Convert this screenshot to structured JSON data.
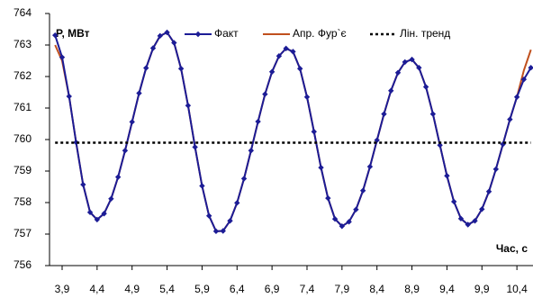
{
  "chart_data": {
    "type": "line",
    "y_label": "P, МВт",
    "x_label": "Час, с",
    "x": [
      3.8,
      3.9,
      4.0,
      4.1,
      4.2,
      4.3,
      4.4,
      4.5,
      4.6,
      4.7,
      4.8,
      4.9,
      5.0,
      5.1,
      5.2,
      5.3,
      5.4,
      5.5,
      5.6,
      5.7,
      5.8,
      5.9,
      6.0,
      6.1,
      6.2,
      6.3,
      6.4,
      6.5,
      6.6,
      6.7,
      6.8,
      6.9,
      7.0,
      7.1,
      7.2,
      7.3,
      7.4,
      7.5,
      7.6,
      7.7,
      7.8,
      7.9,
      8.0,
      8.1,
      8.2,
      8.3,
      8.4,
      8.5,
      8.6,
      8.7,
      8.8,
      8.9,
      9.0,
      9.1,
      9.2,
      9.3,
      9.4,
      9.5,
      9.6,
      9.7,
      9.8,
      9.9,
      10.0,
      10.1,
      10.2,
      10.3,
      10.4,
      10.5,
      10.6
    ],
    "series": [
      {
        "name": "Апр. Фур`є",
        "color": "#c0501e",
        "values": [
          763.0,
          762.5,
          761.37,
          759.91,
          758.57,
          757.69,
          757.46,
          757.65,
          758.12,
          758.81,
          759.65,
          760.56,
          761.47,
          762.27,
          762.9,
          763.29,
          763.4,
          763.07,
          762.25,
          761.08,
          759.76,
          758.53,
          757.58,
          757.09,
          757.1,
          757.42,
          757.99,
          758.76,
          759.65,
          760.57,
          761.44,
          762.15,
          762.65,
          762.89,
          762.79,
          762.25,
          761.35,
          760.25,
          759.11,
          758.14,
          757.48,
          757.25,
          757.39,
          757.78,
          758.38,
          759.14,
          759.98,
          760.81,
          761.55,
          762.12,
          762.46,
          762.54,
          762.28,
          761.67,
          760.81,
          759.82,
          758.85,
          758.03,
          757.49,
          757.3,
          757.42,
          757.79,
          758.35,
          759.06,
          759.85,
          760.64,
          761.35,
          762.2,
          762.85
        ]
      },
      {
        "name": "Факт",
        "color": "#1c1c96",
        "marker": "diamond",
        "values": [
          763.31,
          762.61,
          761.37,
          759.91,
          758.57,
          757.69,
          757.46,
          757.65,
          758.12,
          758.81,
          759.65,
          760.56,
          761.47,
          762.27,
          762.9,
          763.29,
          763.4,
          763.07,
          762.25,
          761.08,
          759.76,
          758.53,
          757.58,
          757.09,
          757.1,
          757.42,
          757.99,
          758.76,
          759.65,
          760.57,
          761.44,
          762.15,
          762.65,
          762.89,
          762.79,
          762.25,
          761.35,
          760.25,
          759.11,
          758.14,
          757.48,
          757.25,
          757.39,
          757.78,
          758.38,
          759.14,
          759.98,
          760.81,
          761.55,
          762.12,
          762.46,
          762.54,
          762.28,
          761.67,
          760.81,
          759.82,
          758.85,
          758.03,
          757.49,
          757.3,
          757.42,
          757.79,
          758.35,
          759.06,
          759.85,
          760.64,
          761.35,
          761.91,
          762.28
        ]
      },
      {
        "name": "Лін. тренд",
        "color": "#000000",
        "dash": true,
        "values": [
          759.9,
          759.9,
          759.9,
          759.9,
          759.9,
          759.9,
          759.9,
          759.9,
          759.9,
          759.9,
          759.9,
          759.9,
          759.9,
          759.9,
          759.9,
          759.9,
          759.9,
          759.9,
          759.9,
          759.9,
          759.9,
          759.9,
          759.9,
          759.9,
          759.9,
          759.9,
          759.9,
          759.9,
          759.9,
          759.9,
          759.9,
          759.9,
          759.9,
          759.9,
          759.9,
          759.9,
          759.9,
          759.9,
          759.9,
          759.9,
          759.9,
          759.9,
          759.9,
          759.9,
          759.9,
          759.9,
          759.9,
          759.9,
          759.9,
          759.9,
          759.9,
          759.9,
          759.9,
          759.9,
          759.9,
          759.9,
          759.9,
          759.9,
          759.9,
          759.9,
          759.9,
          759.9,
          759.9,
          759.9,
          759.9,
          759.9,
          759.9,
          759.9,
          759.9
        ]
      }
    ],
    "xlim": [
      3.72,
      10.63
    ],
    "ylim": [
      756,
      764
    ],
    "xticks": [
      {
        "value": 3.9,
        "label": "3,9"
      },
      {
        "value": 4.4,
        "label": "4,4"
      },
      {
        "value": 4.9,
        "label": "4,9"
      },
      {
        "value": 5.4,
        "label": "5,4"
      },
      {
        "value": 5.9,
        "label": "5,9"
      },
      {
        "value": 6.4,
        "label": "6,4"
      },
      {
        "value": 6.9,
        "label": "6,9"
      },
      {
        "value": 7.4,
        "label": "7,4"
      },
      {
        "value": 7.9,
        "label": "7,9"
      },
      {
        "value": 8.4,
        "label": "8,4"
      },
      {
        "value": 8.9,
        "label": "8,9"
      },
      {
        "value": 9.4,
        "label": "9,4"
      },
      {
        "value": 9.9,
        "label": "9,9"
      },
      {
        "value": 10.4,
        "label": "10,4"
      }
    ],
    "yticks": [
      756,
      757,
      758,
      759,
      760,
      761,
      762,
      763,
      764
    ],
    "grid": false,
    "legend": "top"
  }
}
